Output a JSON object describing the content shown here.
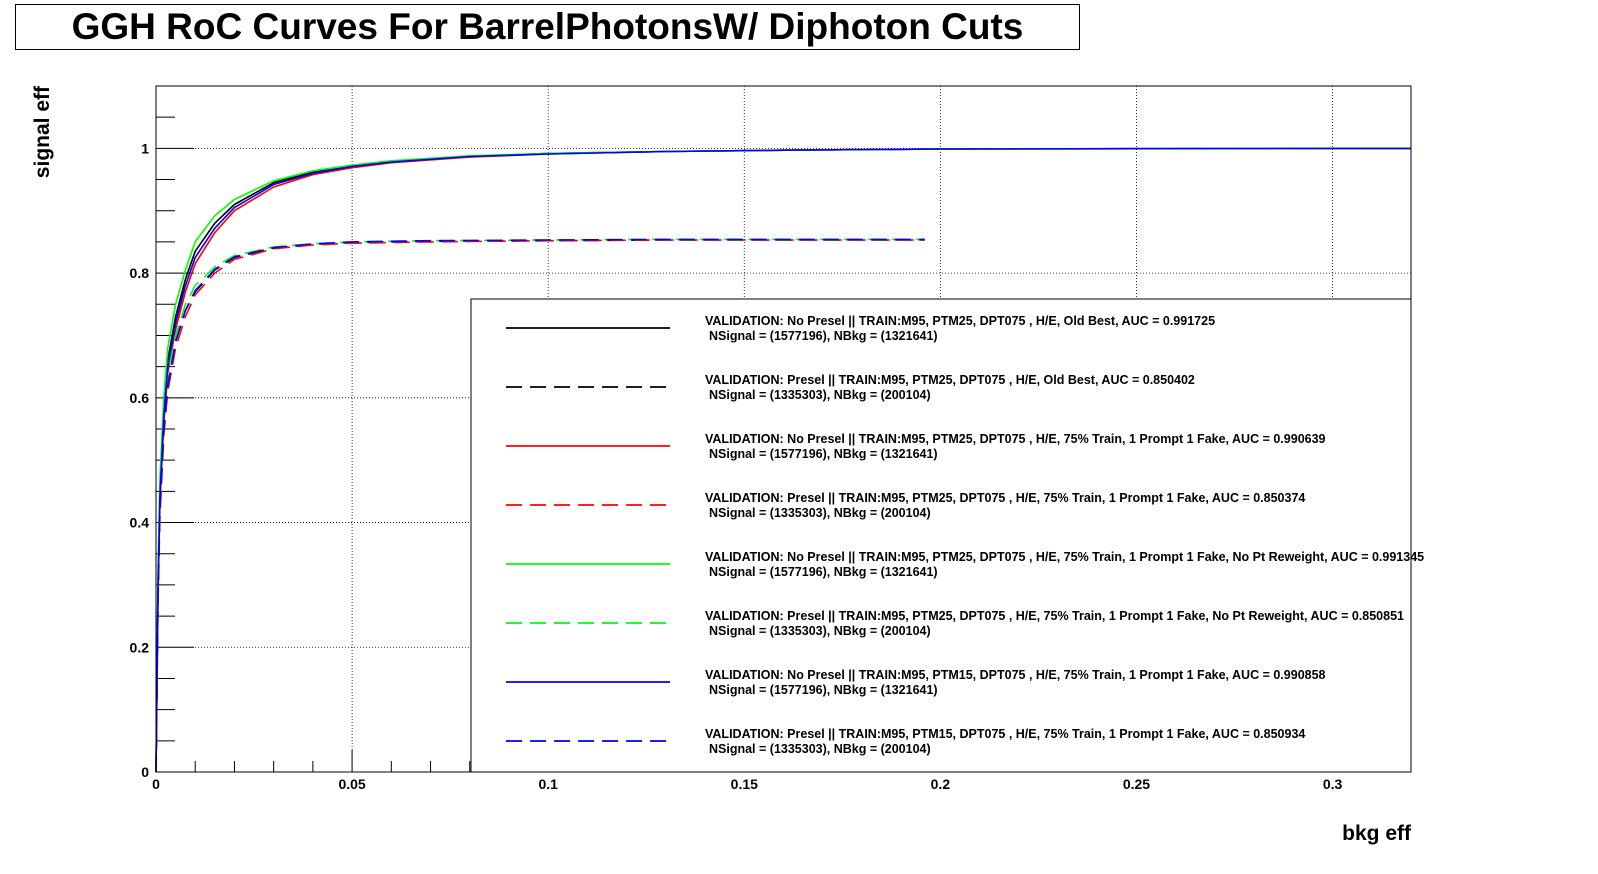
{
  "chart_data": {
    "type": "line",
    "title": "GGH RoC Curves For BarrelPhotonsW/ Diphoton Cuts",
    "xlabel": "bkg eff",
    "ylabel": "signal eff",
    "xlim": [
      0,
      0.32
    ],
    "ylim": [
      0,
      1.1
    ],
    "x_ticks": [
      0,
      0.05,
      0.1,
      0.15,
      0.2,
      0.25,
      0.3
    ],
    "x_tick_labels": [
      "0",
      "0.05",
      "0.1",
      "0.15",
      "0.2",
      "0.25",
      "0.3"
    ],
    "y_ticks": [
      0,
      0.2,
      0.4,
      0.6,
      0.8,
      1
    ],
    "y_tick_labels": [
      "0",
      "0.2",
      "0.4",
      "0.6",
      "0.8",
      "1"
    ],
    "grid": true,
    "legend_position": "bottom-right",
    "series": [
      {
        "name": "VALIDATION: No Presel || TRAIN:M95, PTM25, DPT075 , H/E, Old Best, AUC = 0.991725",
        "name_line2": "NSignal = (1577196), NBkg = (1321641)",
        "color": "#000000",
        "dashed": false,
        "x": [
          0,
          0.0005,
          0.001,
          0.002,
          0.003,
          0.005,
          0.0075,
          0.01,
          0.015,
          0.02,
          0.03,
          0.04,
          0.05,
          0.06,
          0.08,
          0.1,
          0.13,
          0.16,
          0.2,
          0.25,
          0.3,
          0.32
        ],
        "y": [
          0,
          0.3,
          0.45,
          0.58,
          0.66,
          0.73,
          0.79,
          0.835,
          0.88,
          0.91,
          0.945,
          0.962,
          0.972,
          0.979,
          0.987,
          0.992,
          0.995,
          0.997,
          0.999,
          0.9995,
          1,
          1
        ]
      },
      {
        "name": "VALIDATION: Presel || TRAIN:M95, PTM25, DPT075 , H/E, Old Best, AUC = 0.850402",
        "name_line2": "NSignal = (1335303), NBkg = (200104)",
        "color": "#000000",
        "dashed": true,
        "x": [
          0,
          0.0005,
          0.001,
          0.002,
          0.003,
          0.005,
          0.0075,
          0.01,
          0.015,
          0.02,
          0.03,
          0.04,
          0.05,
          0.07,
          0.1,
          0.13,
          0.16,
          0.196
        ],
        "y": [
          0,
          0.28,
          0.42,
          0.55,
          0.62,
          0.69,
          0.74,
          0.77,
          0.805,
          0.825,
          0.84,
          0.846,
          0.849,
          0.851,
          0.852,
          0.853,
          0.853,
          0.853
        ]
      },
      {
        "name": "VALIDATION: No Presel || TRAIN:M95, PTM25, DPT075 , H/E, 75% Train, 1 Prompt 1 Fake, AUC = 0.990639",
        "name_line2": "NSignal = (1577196), NBkg = (1321641)",
        "color": "#ff0000",
        "dashed": false,
        "x": [
          0,
          0.0005,
          0.001,
          0.002,
          0.003,
          0.005,
          0.0075,
          0.01,
          0.015,
          0.02,
          0.03,
          0.04,
          0.05,
          0.06,
          0.08,
          0.1,
          0.13,
          0.16,
          0.2,
          0.25,
          0.3,
          0.32
        ],
        "y": [
          0,
          0.28,
          0.43,
          0.56,
          0.64,
          0.71,
          0.77,
          0.815,
          0.865,
          0.9,
          0.938,
          0.958,
          0.969,
          0.977,
          0.986,
          0.991,
          0.995,
          0.997,
          0.999,
          0.9995,
          1,
          1
        ]
      },
      {
        "name": "VALIDATION: Presel || TRAIN:M95, PTM25, DPT075 , H/E, 75% Train, 1 Prompt 1 Fake, AUC = 0.850374",
        "name_line2": "NSignal = (1335303), NBkg = (200104)",
        "color": "#ff0000",
        "dashed": true,
        "x": [
          0,
          0.0005,
          0.001,
          0.002,
          0.003,
          0.005,
          0.0075,
          0.01,
          0.015,
          0.02,
          0.03,
          0.04,
          0.05,
          0.07,
          0.1,
          0.13,
          0.16,
          0.196
        ],
        "y": [
          0,
          0.27,
          0.41,
          0.54,
          0.61,
          0.68,
          0.73,
          0.765,
          0.8,
          0.822,
          0.839,
          0.845,
          0.848,
          0.85,
          0.852,
          0.853,
          0.853,
          0.853
        ]
      },
      {
        "name": "VALIDATION: No Presel || TRAIN:M95, PTM25, DPT075 , H/E, 75% Train, 1 Prompt 1 Fake, No Pt Reweight, AUC = 0.991345",
        "name_line2": "NSignal = (1577196), NBkg = (1321641)",
        "color": "#00ff00",
        "dashed": false,
        "x": [
          0,
          0.0005,
          0.001,
          0.002,
          0.003,
          0.005,
          0.0075,
          0.01,
          0.015,
          0.02,
          0.03,
          0.04,
          0.05,
          0.06,
          0.08,
          0.1,
          0.13,
          0.16,
          0.2,
          0.25,
          0.3,
          0.32
        ],
        "y": [
          0,
          0.32,
          0.47,
          0.6,
          0.68,
          0.75,
          0.805,
          0.85,
          0.892,
          0.918,
          0.948,
          0.964,
          0.973,
          0.98,
          0.988,
          0.992,
          0.995,
          0.997,
          0.999,
          0.9995,
          1,
          1
        ]
      },
      {
        "name": "VALIDATION: Presel || TRAIN:M95, PTM25, DPT075 , H/E, 75% Train, 1 Prompt 1 Fake, No Pt Reweight, AUC = 0.850851",
        "name_line2": "NSignal = (1335303), NBkg = (200104)",
        "color": "#00ff00",
        "dashed": true,
        "x": [
          0,
          0.0005,
          0.001,
          0.002,
          0.003,
          0.005,
          0.0075,
          0.01,
          0.015,
          0.02,
          0.03,
          0.04,
          0.05,
          0.07,
          0.1,
          0.13,
          0.16,
          0.196
        ],
        "y": [
          0,
          0.3,
          0.44,
          0.57,
          0.64,
          0.7,
          0.75,
          0.78,
          0.81,
          0.828,
          0.842,
          0.847,
          0.85,
          0.852,
          0.853,
          0.854,
          0.854,
          0.854
        ]
      },
      {
        "name": "VALIDATION: No Presel || TRAIN:M95, PTM15, DPT075 , H/E, 75% Train, 1 Prompt 1 Fake, AUC = 0.990858",
        "name_line2": "NSignal = (1577196), NBkg = (1321641)",
        "color": "#0000ff",
        "dashed": false,
        "x": [
          0,
          0.0005,
          0.001,
          0.002,
          0.003,
          0.005,
          0.0075,
          0.01,
          0.015,
          0.02,
          0.03,
          0.04,
          0.05,
          0.06,
          0.08,
          0.1,
          0.13,
          0.16,
          0.2,
          0.25,
          0.3,
          0.32
        ],
        "y": [
          0,
          0.29,
          0.44,
          0.57,
          0.65,
          0.72,
          0.78,
          0.825,
          0.872,
          0.905,
          0.942,
          0.96,
          0.971,
          0.978,
          0.987,
          0.991,
          0.995,
          0.997,
          0.999,
          0.9995,
          1,
          1
        ]
      },
      {
        "name": "VALIDATION: Presel || TRAIN:M95, PTM15, DPT075 , H/E, 75% Train, 1 Prompt 1 Fake, AUC = 0.850934",
        "name_line2": "NSignal = (1335303), NBkg = (200104)",
        "color": "#0000ff",
        "dashed": true,
        "x": [
          0,
          0.0005,
          0.001,
          0.002,
          0.003,
          0.005,
          0.0075,
          0.01,
          0.015,
          0.02,
          0.03,
          0.04,
          0.05,
          0.07,
          0.1,
          0.13,
          0.16,
          0.196
        ],
        "y": [
          0,
          0.28,
          0.42,
          0.55,
          0.62,
          0.69,
          0.74,
          0.772,
          0.806,
          0.826,
          0.841,
          0.847,
          0.85,
          0.852,
          0.853,
          0.854,
          0.854,
          0.854
        ]
      }
    ]
  }
}
